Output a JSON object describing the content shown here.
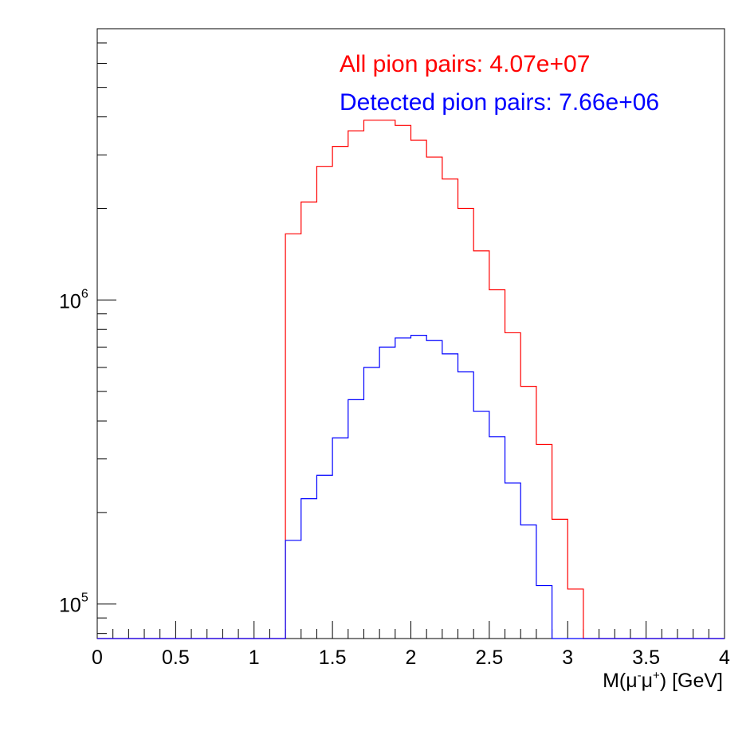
{
  "chart_data": {
    "type": "histogram",
    "y_scale": "log",
    "xlim": [
      0,
      4
    ],
    "ylim": [
      77000,
      7800000
    ],
    "bin_width": 0.1,
    "xlabel": {
      "prefix": "M(",
      "mu1": "μ",
      "sup1": "-",
      "mu2": "μ",
      "sup2": "+",
      "suffix": ") [GeV]"
    },
    "x_ticks": [
      {
        "value": 0,
        "label": "0"
      },
      {
        "value": 0.5,
        "label": "0.5"
      },
      {
        "value": 1,
        "label": "1"
      },
      {
        "value": 1.5,
        "label": "1.5"
      },
      {
        "value": 2,
        "label": "2"
      },
      {
        "value": 2.5,
        "label": "2.5"
      },
      {
        "value": 3,
        "label": "3"
      },
      {
        "value": 3.5,
        "label": "3.5"
      },
      {
        "value": 4,
        "label": "4"
      }
    ],
    "y_ticks": [
      {
        "value": 100000,
        "base": "10",
        "exp": "5"
      },
      {
        "value": 1000000,
        "base": "10",
        "exp": "6"
      }
    ],
    "legend": [
      {
        "text": "All pion pairs: 4.07e+07",
        "color": "#ff0000"
      },
      {
        "text": "Detected pion pairs: 7.66e+06",
        "color": "#0000ff"
      }
    ],
    "series": [
      {
        "name": "All pion pairs",
        "color": "#ff0000",
        "x_edges_start": 0,
        "values": [
          0,
          0,
          0,
          0,
          0,
          0,
          0,
          0,
          0,
          0,
          0,
          0,
          1650000,
          2100000,
          2750000,
          3200000,
          3600000,
          3900000,
          3900000,
          3750000,
          3350000,
          2950000,
          2500000,
          2000000,
          1450000,
          1080000,
          780000,
          520000,
          335000,
          190000,
          112000,
          0,
          0,
          0,
          0,
          0,
          0,
          0,
          0,
          0
        ]
      },
      {
        "name": "Detected pion pairs",
        "color": "#0000ff",
        "x_edges_start": 0,
        "values": [
          0,
          0,
          0,
          0,
          0,
          0,
          0,
          0,
          0,
          0,
          0,
          0,
          162000,
          222000,
          265000,
          352000,
          470000,
          600000,
          700000,
          750000,
          765000,
          735000,
          665000,
          580000,
          430000,
          355000,
          250000,
          182000,
          115000,
          0,
          0,
          0,
          0,
          0,
          0,
          0,
          0,
          0,
          0,
          0
        ]
      }
    ]
  }
}
